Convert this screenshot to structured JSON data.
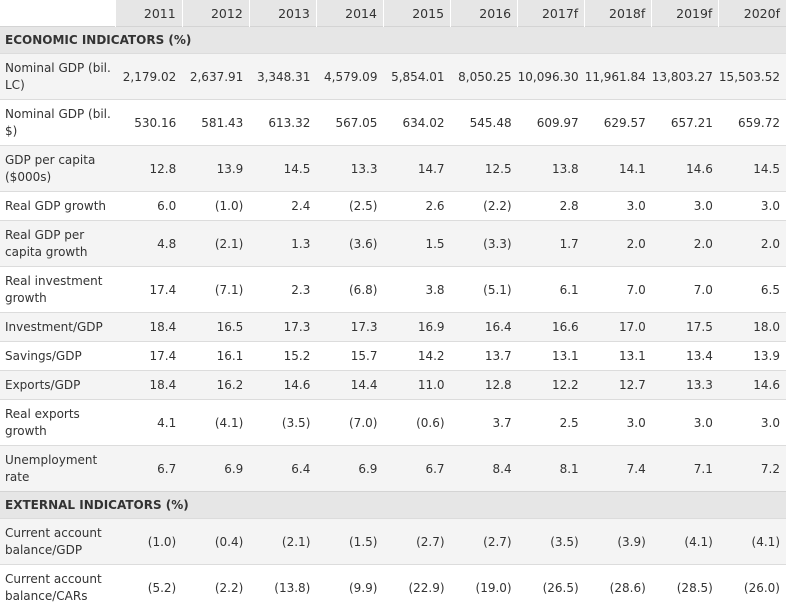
{
  "header": {
    "years": [
      "2011",
      "2012",
      "2013",
      "2014",
      "2015",
      "2016",
      "2017f",
      "2018f",
      "2019f",
      "2020f"
    ]
  },
  "sections": [
    {
      "title": "ECONOMIC INDICATORS (%)",
      "rows": [
        {
          "label": "Nominal GDP (bil. LC)",
          "values": [
            "2,179.02",
            "2,637.91",
            "3,348.31",
            "4,579.09",
            "5,854.01",
            "8,050.25",
            "10,096.30",
            "11,961.84",
            "13,803.27",
            "15,503.52"
          ],
          "size": "tall"
        },
        {
          "label": "Nominal GDP (bil. $)",
          "values": [
            "530.16",
            "581.43",
            "613.32",
            "567.05",
            "634.02",
            "545.48",
            "609.97",
            "629.57",
            "657.21",
            "659.72"
          ],
          "size": "tall"
        },
        {
          "label": "GDP per capita ($000s)",
          "values": [
            "12.8",
            "13.9",
            "14.5",
            "13.3",
            "14.7",
            "12.5",
            "13.8",
            "14.1",
            "14.6",
            "14.5"
          ],
          "size": "tall"
        },
        {
          "label": "Real GDP growth",
          "values": [
            "6.0",
            "(1.0)",
            "2.4",
            "(2.5)",
            "2.6",
            "(2.2)",
            "2.8",
            "3.0",
            "3.0",
            "3.0"
          ],
          "size": "short"
        },
        {
          "label": "Real GDP per capita growth",
          "values": [
            "4.8",
            "(2.1)",
            "1.3",
            "(3.6)",
            "1.5",
            "(3.3)",
            "1.7",
            "2.0",
            "2.0",
            "2.0"
          ],
          "size": "tall"
        },
        {
          "label": "Real investment growth",
          "values": [
            "17.4",
            "(7.1)",
            "2.3",
            "(6.8)",
            "3.8",
            "(5.1)",
            "6.1",
            "7.0",
            "7.0",
            "6.5"
          ],
          "size": "tall"
        },
        {
          "label": "Investment/GDP",
          "values": [
            "18.4",
            "16.5",
            "17.3",
            "17.3",
            "16.9",
            "16.4",
            "16.6",
            "17.0",
            "17.5",
            "18.0"
          ],
          "size": "short"
        },
        {
          "label": "Savings/GDP",
          "values": [
            "17.4",
            "16.1",
            "15.2",
            "15.7",
            "14.2",
            "13.7",
            "13.1",
            "13.1",
            "13.4",
            "13.9"
          ],
          "size": "short"
        },
        {
          "label": "Exports/GDP",
          "values": [
            "18.4",
            "16.2",
            "14.6",
            "14.4",
            "11.0",
            "12.8",
            "12.2",
            "12.7",
            "13.3",
            "14.6"
          ],
          "size": "short"
        },
        {
          "label": "Real exports growth",
          "values": [
            "4.1",
            "(4.1)",
            "(3.5)",
            "(7.0)",
            "(0.6)",
            "3.7",
            "2.5",
            "3.0",
            "3.0",
            "3.0"
          ],
          "size": "tall"
        },
        {
          "label": "Unemployment rate",
          "values": [
            "6.7",
            "6.9",
            "6.4",
            "6.9",
            "6.7",
            "8.4",
            "8.1",
            "7.4",
            "7.1",
            "7.2"
          ],
          "size": "tall"
        }
      ]
    },
    {
      "title": "EXTERNAL INDICATORS (%)",
      "rows": [
        {
          "label": "Current account balance/GDP",
          "values": [
            "(1.0)",
            "(0.4)",
            "(2.1)",
            "(1.5)",
            "(2.7)",
            "(2.7)",
            "(3.5)",
            "(3.9)",
            "(4.1)",
            "(4.1)"
          ],
          "size": "tall"
        },
        {
          "label": "Current account balance/CARs",
          "values": [
            "(5.2)",
            "(2.2)",
            "(13.8)",
            "(9.9)",
            "(22.9)",
            "(19.0)",
            "(26.5)",
            "(28.6)",
            "(28.5)",
            "(26.0)"
          ],
          "size": "tall"
        }
      ]
    }
  ]
}
